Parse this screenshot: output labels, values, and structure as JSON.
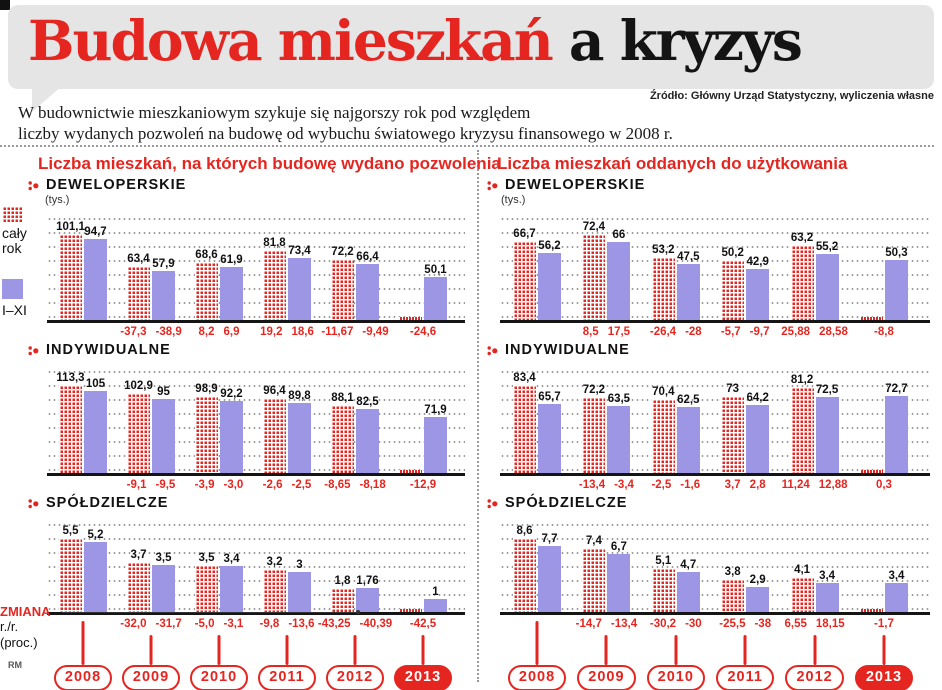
{
  "page": {
    "title_red": "Budowa mieszkań",
    "title_black": " a kryzys",
    "source": "Źródło: Główny Urząd Statystyczny, wyliczenia własne",
    "intro_line1": "W budownictwie mieszkaniowym szykuje się najgorszy rok pod względem",
    "intro_line2": "liczby wydanych pozwoleń na budowę od wybuchu światowego kryzysu finansowego w 2008 r.",
    "credit": "RM"
  },
  "legend": {
    "full_year_label": "cały rok",
    "jan_nov_label": "I–XI"
  },
  "change_note": {
    "title": "ZMIANA",
    "line2": "r./r.",
    "line3": "(proc.)"
  },
  "years": [
    "2008",
    "2009",
    "2010",
    "2011",
    "2012",
    "2013"
  ],
  "colors": {
    "accent_red": "#e52620",
    "bar_purple": "#9c96e4",
    "bubble_gray": "#e5e5e5"
  },
  "chart_data": [
    {
      "type": "bar",
      "title": "Liczba mieszkań, na których budowę wydano pozwolenia",
      "unit": "(tys.)",
      "categories": [
        "2008",
        "2009",
        "2010",
        "2011",
        "2012",
        "2013"
      ],
      "series_labels": [
        "cały rok",
        "I–XI"
      ],
      "sections": [
        {
          "label": "DEWELOPERSKIE",
          "values": [
            [
              "101,1",
              "94,7"
            ],
            [
              "63,4",
              "57,9"
            ],
            [
              "68,6",
              "61,9"
            ],
            [
              "81,8",
              "73,4"
            ],
            [
              "72,2",
              "66,4"
            ],
            [
              null,
              "50,1"
            ]
          ],
          "changes": [
            null,
            [
              "-37,3",
              "-38,9"
            ],
            [
              "8,2",
              "6,9"
            ],
            [
              "19,2",
              "18,6"
            ],
            [
              "-11,67",
              "-9,49"
            ],
            [
              "-24,6"
            ]
          ]
        },
        {
          "label": "INDYWIDUALNE",
          "values": [
            [
              "113,3",
              "105"
            ],
            [
              "102,9",
              "95"
            ],
            [
              "98,9",
              "92,2"
            ],
            [
              "96,4",
              "89,8"
            ],
            [
              "88,1",
              "82,5"
            ],
            [
              null,
              "71,9"
            ]
          ],
          "changes": [
            null,
            [
              "-9,1",
              "-9,5"
            ],
            [
              "-3,9",
              "-3,0"
            ],
            [
              "-2,6",
              "-2,5"
            ],
            [
              "-8,65",
              "-8,18"
            ],
            [
              "-12,9"
            ]
          ]
        },
        {
          "label": "SPÓŁDZIELCZE",
          "values": [
            [
              "5,5",
              "5,2"
            ],
            [
              "3,7",
              "3,5"
            ],
            [
              "3,5",
              "3,4"
            ],
            [
              "3,2",
              "3"
            ],
            [
              "1,8",
              "1,76"
            ],
            [
              null,
              "1"
            ]
          ],
          "changes": [
            null,
            [
              "-32,0",
              "-31,7"
            ],
            [
              "-5,0",
              "-3,1"
            ],
            [
              "-9,8",
              "-13,6"
            ],
            [
              "-43,25",
              "-40,39"
            ],
            [
              "-42,5"
            ]
          ]
        }
      ]
    },
    {
      "type": "bar",
      "title": "Liczba mieszkań oddanych do użytkowania",
      "unit": "(tys.)",
      "categories": [
        "2008",
        "2009",
        "2010",
        "2011",
        "2012",
        "2013"
      ],
      "series_labels": [
        "cały rok",
        "I–XI"
      ],
      "sections": [
        {
          "label": "DEWELOPERSKIE",
          "values": [
            [
              "66,7",
              "56,2"
            ],
            [
              "72,4",
              "66"
            ],
            [
              "53,2",
              "47,5"
            ],
            [
              "50,2",
              "42,9"
            ],
            [
              "63,2",
              "55,2"
            ],
            [
              null,
              "50,3"
            ]
          ],
          "changes": [
            null,
            [
              "8,5",
              "17,5"
            ],
            [
              "-26,4",
              "-28"
            ],
            [
              "-5,7",
              "-9,7"
            ],
            [
              "25,88",
              "28,58"
            ],
            [
              "-8,8"
            ]
          ]
        },
        {
          "label": "INDYWIDUALNE",
          "values": [
            [
              "83,4",
              "65,7"
            ],
            [
              "72,2",
              "63,5"
            ],
            [
              "70,4",
              "62,5"
            ],
            [
              "73",
              "64,2"
            ],
            [
              "81,2",
              "72,5"
            ],
            [
              null,
              "72,7"
            ]
          ],
          "changes": [
            null,
            [
              "-13,4",
              "-3,4"
            ],
            [
              "-2,5",
              "-1,6"
            ],
            [
              "3,7",
              "2,8"
            ],
            [
              "11,24",
              "12,88"
            ],
            [
              "0,3"
            ]
          ]
        },
        {
          "label": "SPÓŁDZIELCZE",
          "values": [
            [
              "8,6",
              "7,7"
            ],
            [
              "7,4",
              "6,7"
            ],
            [
              "5,1",
              "4,7"
            ],
            [
              "3,8",
              "2,9"
            ],
            [
              "4,1",
              "3,4"
            ],
            [
              null,
              "3,4"
            ]
          ],
          "changes": [
            null,
            [
              "-14,7",
              "-13,4"
            ],
            [
              "-30,2",
              "-30"
            ],
            [
              "-25,5",
              "-38"
            ],
            [
              "6,55",
              "18,15"
            ],
            [
              "-1,7"
            ]
          ]
        }
      ]
    }
  ]
}
